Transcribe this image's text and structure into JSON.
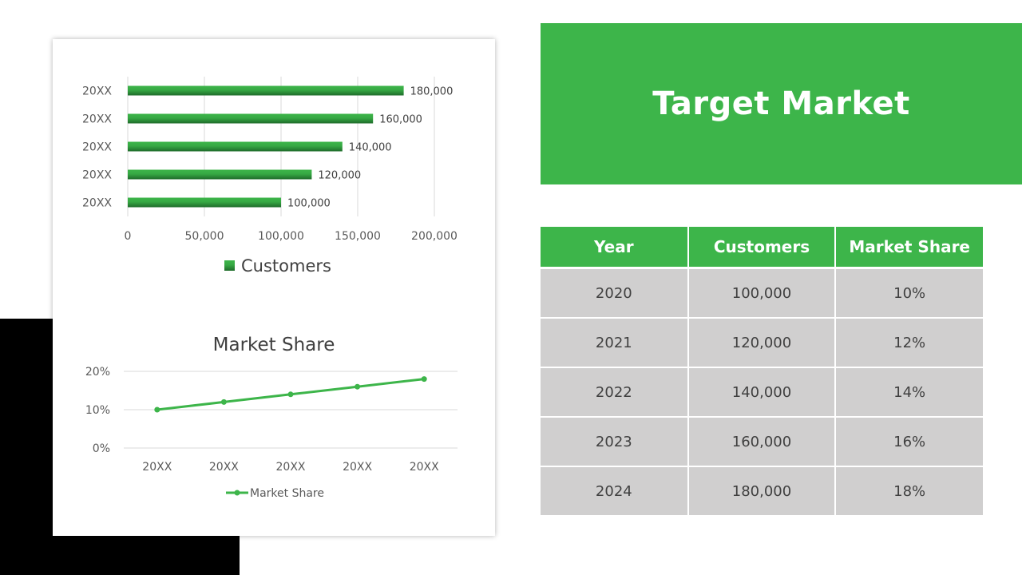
{
  "slide": {
    "title": "Target Market"
  },
  "colors": {
    "accent": "#3db54a",
    "bar_dark": "#1e6b2a",
    "table_cell_bg": "#d0cfcf",
    "black_block": "#000000"
  },
  "table": {
    "headers": [
      "Year",
      "Customers",
      "Market Share"
    ],
    "rows": [
      [
        "2020",
        "100,000",
        "10%"
      ],
      [
        "2021",
        "120,000",
        "12%"
      ],
      [
        "2022",
        "140,000",
        "14%"
      ],
      [
        "2023",
        "160,000",
        "16%"
      ],
      [
        "2024",
        "180,000",
        "18%"
      ]
    ]
  },
  "chart_data": [
    {
      "type": "bar",
      "orientation": "horizontal",
      "title": "",
      "categories": [
        "20XX",
        "20XX",
        "20XX",
        "20XX",
        "20XX"
      ],
      "series": [
        {
          "name": "Customers",
          "values": [
            100000,
            120000,
            140000,
            160000,
            180000
          ]
        }
      ],
      "data_labels": [
        "100,000",
        "120,000",
        "140,000",
        "160,000",
        "180,000"
      ],
      "xlim": [
        0,
        200000
      ],
      "x_ticks": [
        "0",
        "50,000",
        "100,000",
        "150,000",
        "200,000"
      ],
      "grid": true,
      "legend": "bottom"
    },
    {
      "type": "line",
      "title": "Market Share",
      "categories": [
        "20XX",
        "20XX",
        "20XX",
        "20XX",
        "20XX"
      ],
      "series": [
        {
          "name": "Market Share",
          "values": [
            10,
            12,
            14,
            16,
            18
          ]
        }
      ],
      "ylim": [
        0,
        20
      ],
      "y_ticks": [
        "0%",
        "10%",
        "20%"
      ],
      "grid": true,
      "legend": "bottom"
    }
  ]
}
